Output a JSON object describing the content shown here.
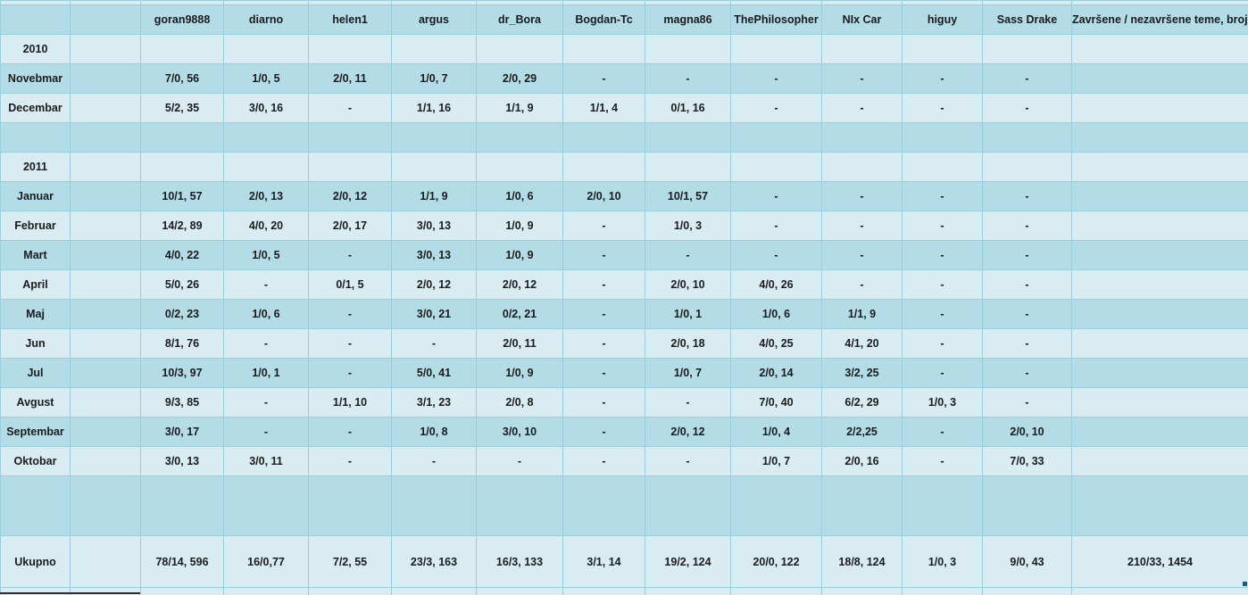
{
  "colors": {
    "band_light": "#d9ecf2",
    "band_medium": "#b4dce7",
    "grid": "#99cede",
    "header_blue": "#2173b4",
    "note_red": "#d60000",
    "total_red": "#ff0000",
    "ink": "#1b1b1b"
  },
  "table": {
    "users": [
      "goran9888",
      "diarno",
      "helen1",
      "argus",
      "dr_Bora",
      "Bogdan-Tc",
      "magna86",
      "ThePhilosopher",
      "NIx Car",
      "higuy",
      "Sass Drake"
    ],
    "last_column_header": "Završene / nezavršene teme, broj logova",
    "rows": [
      {
        "type": "year",
        "label": "2010",
        "cells": [
          "",
          "",
          "",
          "",
          "",
          "",
          "",
          "",
          "",
          "",
          ""
        ]
      },
      {
        "type": "month",
        "label": "Novebmar",
        "cells": [
          "7/0, 56",
          "1/0, 5",
          "2/0, 11",
          "1/0, 7",
          "2/0, 29",
          "-",
          "-",
          "-",
          "-",
          "-",
          "-"
        ]
      },
      {
        "type": "month",
        "label": "Decembar",
        "cells": [
          "5/2, 35",
          "3/0, 16",
          "-",
          "1/1, 16",
          "1/1, 9",
          "1/1, 4",
          "0/1, 16",
          "-",
          "-",
          "-",
          "-"
        ]
      },
      {
        "type": "spacer",
        "label": "",
        "cells": [
          "",
          "",
          "",
          "",
          "",
          "",
          "",
          "",
          "",
          "",
          ""
        ]
      },
      {
        "type": "year",
        "label": "2011",
        "cells": [
          "",
          "",
          "",
          "",
          "",
          "",
          "",
          "",
          "",
          "",
          ""
        ]
      },
      {
        "type": "month",
        "label": "Januar",
        "cells": [
          "10/1, 57",
          "2/0, 13",
          "2/0, 12",
          "1/1, 9",
          "1/0, 6",
          "2/0, 10",
          "10/1, 57",
          "-",
          "-",
          "-",
          "-"
        ]
      },
      {
        "type": "month",
        "label": "Februar",
        "cells": [
          "14/2, 89",
          "4/0, 20",
          "2/0, 17",
          "3/0, 13",
          "1/0, 9",
          "-",
          "1/0, 3",
          "-",
          "-",
          "-",
          "-"
        ]
      },
      {
        "type": "month",
        "label": "Mart",
        "cells": [
          "4/0, 22",
          "1/0, 5",
          "-",
          "3/0, 13",
          "1/0, 9",
          "-",
          "-",
          "-",
          "-",
          "-",
          "-"
        ]
      },
      {
        "type": "month",
        "label": "April",
        "cells": [
          "5/0, 26",
          "-",
          "0/1, 5",
          "2/0, 12",
          "2/0, 12",
          "-",
          "2/0, 10",
          "4/0, 26",
          "-",
          "-",
          "-"
        ]
      },
      {
        "type": "month",
        "label": "Maj",
        "cells": [
          "0/2, 23",
          "1/0, 6",
          "-",
          "3/0, 21",
          "0/2, 21",
          "-",
          "1/0, 1",
          "1/0, 6",
          "1/1, 9",
          "-",
          "-"
        ]
      },
      {
        "type": "month",
        "label": "Jun",
        "cells": [
          "8/1, 76",
          "-",
          "-",
          "-",
          "2/0, 11",
          "-",
          "2/0, 18",
          "4/0, 25",
          "4/1, 20",
          "-",
          "-"
        ]
      },
      {
        "type": "month",
        "label": "Jul",
        "cells": [
          "10/3, 97",
          "1/0, 1",
          "-",
          "5/0, 41",
          "1/0, 9",
          "-",
          "1/0, 7",
          "2/0, 14",
          "3/2, 25",
          "-",
          "-"
        ]
      },
      {
        "type": "month",
        "label": "Avgust",
        "cells": [
          "9/3, 85",
          "-",
          "1/1, 10",
          "3/1, 23",
          "2/0, 8",
          "-",
          "-",
          "7/0, 40",
          "6/2, 29",
          "1/0, 3",
          "-"
        ]
      },
      {
        "type": "month",
        "label": "Septembar",
        "cells": [
          "3/0, 17",
          "-",
          "-",
          "1/0, 8",
          "3/0, 10",
          "-",
          "2/0, 12",
          "1/0, 4",
          "2/2,25",
          "-",
          "2/0, 10"
        ]
      },
      {
        "type": "month",
        "label": "Oktobar",
        "cells": [
          "3/0, 13",
          "3/0, 11",
          "-",
          "-",
          "-",
          "-",
          "-",
          "1/0, 7",
          "2/0, 16",
          "-",
          "7/0, 33"
        ]
      },
      {
        "type": "spacer-tall",
        "label": "",
        "cells": [
          "",
          "",
          "",
          "",
          "",
          "",
          "",
          "",
          "",
          "",
          ""
        ]
      }
    ],
    "total_row": {
      "label": "Ukupno",
      "cells": [
        "78/14, 596",
        "16/0,77",
        "7/2, 55",
        "23/3, 163",
        "16/3, 133",
        "3/1, 14",
        "19/2, 124",
        "20/0, 122",
        "18/8, 124",
        "1/0, 3",
        "9/0, 43"
      ],
      "grand_total": "210/33, 1454"
    }
  }
}
